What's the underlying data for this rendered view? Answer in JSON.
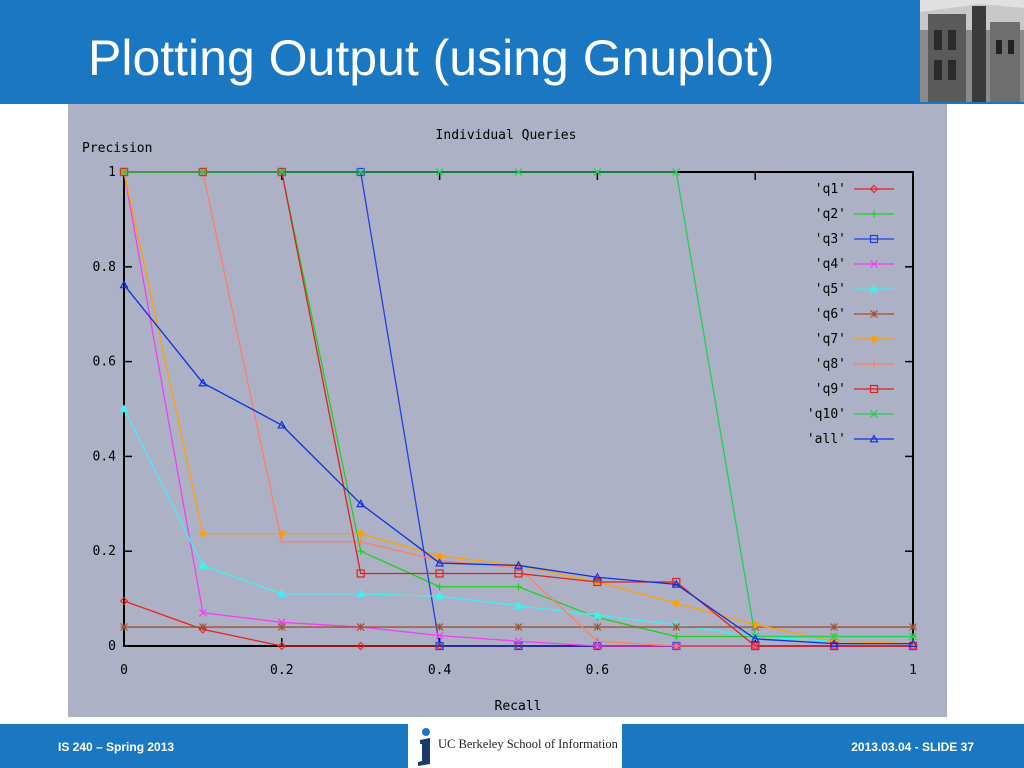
{
  "slide": {
    "title": "Plotting Output (using Gnuplot)",
    "photo_icon": "building-photo",
    "footer_left": "IS 240 – Spring 2013",
    "footer_right": "2013.03.04 - SLIDE 37",
    "logo_text": "UC Berkeley School of Information",
    "colors": {
      "header": "#1a78c2",
      "plot_bg": "#adb1c6"
    }
  },
  "chart_data": {
    "type": "line",
    "title": "Individual Queries",
    "xlabel": "Recall",
    "ylabel": "Precision",
    "xlim": [
      0,
      1
    ],
    "ylim": [
      0,
      1
    ],
    "x_ticks": [
      "0",
      "0.2",
      "0.4",
      "0.6",
      "0.8",
      "1"
    ],
    "y_ticks": [
      "0",
      "0.2",
      "0.4",
      "0.6",
      "0.8",
      "1"
    ],
    "legend_position": "top-right",
    "grid": false,
    "x": [
      0,
      0.1,
      0.2,
      0.3,
      0.4,
      0.5,
      0.6,
      0.7,
      0.8,
      0.9,
      1.0
    ],
    "series": [
      {
        "name": "'q1'",
        "color": "#ee2020",
        "marker": "diamond",
        "values": [
          0.095,
          0.035,
          0,
          0,
          0,
          0,
          0,
          0,
          0,
          0,
          0
        ]
      },
      {
        "name": "'q2'",
        "color": "#20d020",
        "marker": "plus",
        "values": [
          1,
          1,
          1,
          0.2,
          0.125,
          0.125,
          0.06,
          0.02,
          0.02,
          0.02,
          0.02
        ]
      },
      {
        "name": "'q3'",
        "color": "#2040e0",
        "marker": "square",
        "values": [
          1,
          1,
          1,
          1,
          0,
          0,
          0,
          0,
          0,
          0,
          0
        ]
      },
      {
        "name": "'q4'",
        "color": "#f040f0",
        "marker": "cross",
        "values": [
          1,
          0.07,
          0.05,
          0.04,
          0.022,
          0.01,
          0,
          0,
          0,
          0,
          0
        ]
      },
      {
        "name": "'q5'",
        "color": "#40f0f0",
        "marker": "triangle-filled",
        "values": [
          0.5,
          0.17,
          0.11,
          0.11,
          0.105,
          0.085,
          0.065,
          0.045,
          0.02,
          0.01,
          0.005
        ]
      },
      {
        "name": "'q6'",
        "color": "#a0522d",
        "marker": "star",
        "values": [
          0.04,
          0.04,
          0.04,
          0.04,
          0.04,
          0.04,
          0.04,
          0.04,
          0.04,
          0.04,
          0.04
        ]
      },
      {
        "name": "'q7'",
        "color": "#ffa000",
        "marker": "diamond-filled",
        "values": [
          1,
          0.237,
          0.237,
          0.237,
          0.19,
          0.17,
          0.135,
          0.09,
          0.045,
          0.01,
          0.005
        ]
      },
      {
        "name": "'q8'",
        "color": "#ff8060",
        "marker": "plus",
        "values": [
          1,
          1,
          0.22,
          0.22,
          0.18,
          0.165,
          0.01,
          0,
          0,
          0,
          0
        ]
      },
      {
        "name": "'q9'",
        "color": "#e02020",
        "marker": "square",
        "values": [
          1,
          1,
          1,
          0.153,
          0.153,
          0.153,
          0.135,
          0.135,
          0,
          0,
          0
        ]
      },
      {
        "name": "'q10'",
        "color": "#20d050",
        "marker": "cross",
        "values": [
          1,
          1,
          1,
          1,
          1,
          1,
          1,
          1,
          0.02,
          0.02,
          0.02
        ]
      },
      {
        "name": "'all'",
        "color": "#1030e0",
        "marker": "triangle",
        "values": [
          0.762,
          0.555,
          0.466,
          0.3,
          0.175,
          0.17,
          0.145,
          0.13,
          0.015,
          0.005,
          0.005
        ]
      }
    ]
  }
}
